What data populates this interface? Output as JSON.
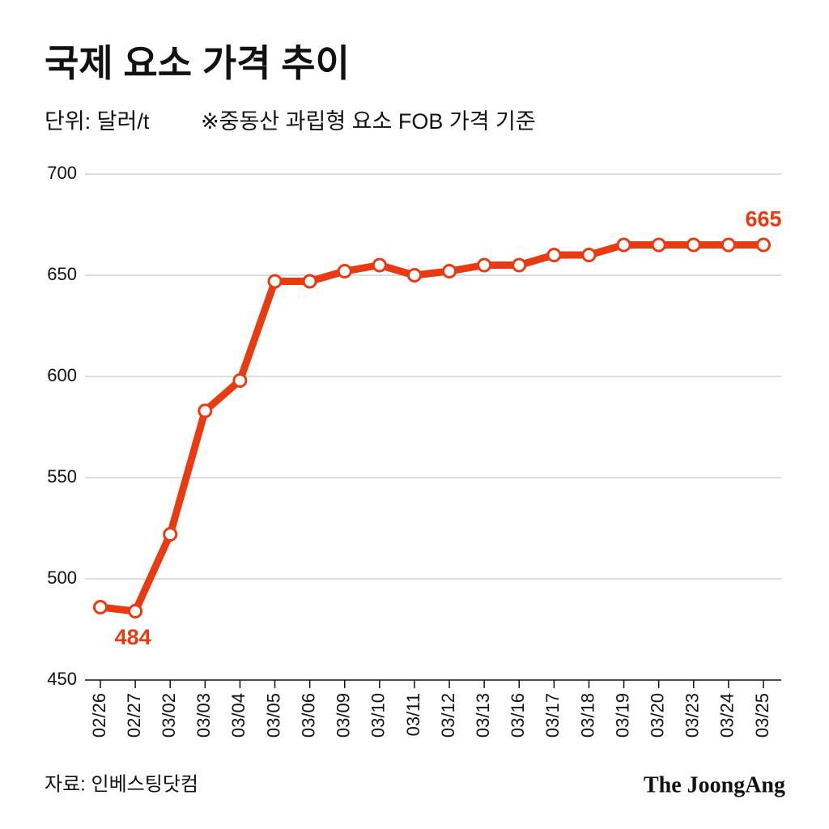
{
  "chart_data": {
    "type": "line",
    "title": "국제 요소 가격 추이",
    "subtitle": "단위: 달러/t",
    "note": "※중동산 과립형 요소 FOB 가격 기준",
    "source": "자료: 인베스팅닷컴",
    "brand": "The JoongAng",
    "categories": [
      "02/26",
      "02/27",
      "03/02",
      "03/03",
      "03/04",
      "03/05",
      "03/06",
      "03/09",
      "03/10",
      "03/11",
      "03/12",
      "03/13",
      "03/16",
      "03/17",
      "03/18",
      "03/19",
      "03/20",
      "03/23",
      "03/24",
      "03/25"
    ],
    "values": [
      486,
      484,
      522,
      583,
      598,
      647,
      647,
      652,
      655,
      650,
      652,
      655,
      655,
      660,
      660,
      665,
      665,
      665,
      665,
      665
    ],
    "value_labels": [
      null,
      "484",
      null,
      null,
      null,
      null,
      null,
      null,
      null,
      null,
      null,
      null,
      null,
      null,
      null,
      null,
      null,
      null,
      null,
      "665"
    ],
    "color": "#e93b12",
    "ylim": [
      450,
      700
    ],
    "yticks": [
      450,
      500,
      550,
      600,
      650,
      700
    ],
    "grid": true
  }
}
